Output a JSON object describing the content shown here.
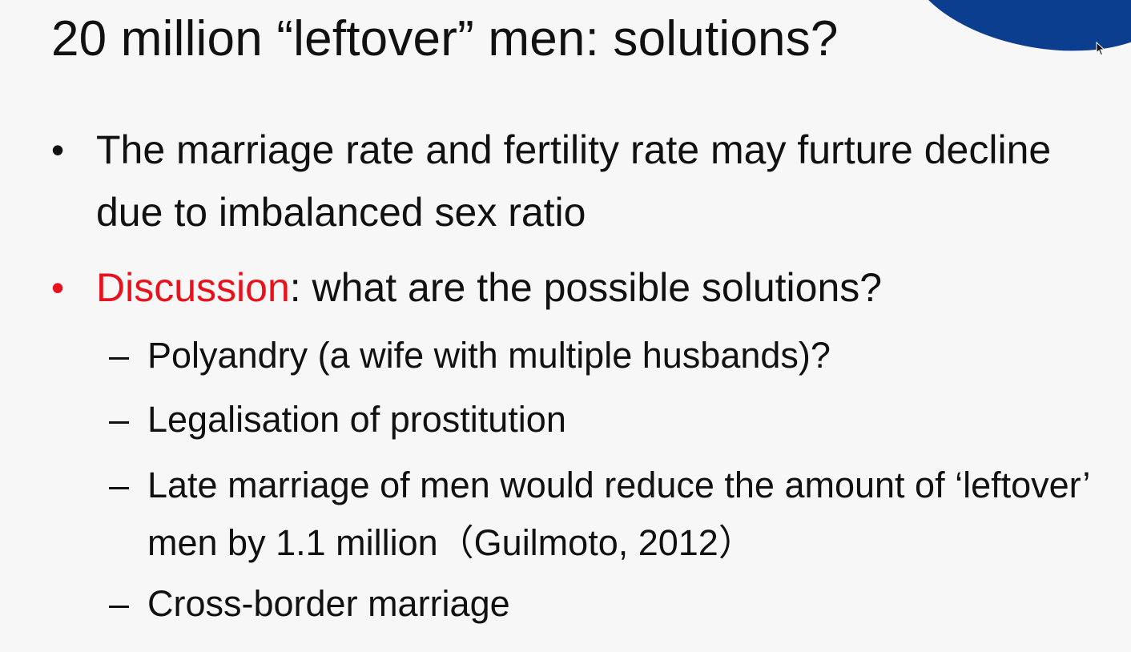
{
  "slide": {
    "title": "20 million “leftover” men: solutions?",
    "bullets": [
      {
        "marker": "•",
        "text": "The marriage rate and fertility rate may furture decline due to imbalanced sex ratio"
      },
      {
        "marker": "•",
        "highlight": "Discussion",
        "text": ": what are the possible solutions?",
        "sub_items": [
          {
            "marker": "–",
            "text": "Polyandry (a wife with multiple husbands)?"
          },
          {
            "marker": "–",
            "text": "Legalisation of prostitution"
          },
          {
            "marker": "–",
            "text": "Late marriage of men would reduce the amount of ‘leftover’ men by 1.1 million（Guilmoto, 2012）"
          },
          {
            "marker": "–",
            "text": "Cross-border marriage"
          }
        ]
      }
    ]
  },
  "colors": {
    "text": "#111111",
    "highlight": "#e8111c",
    "accent": "#0b3e8f",
    "background": "#f7f7f7"
  },
  "icons": {
    "cursor": "mouse-pointer-icon"
  }
}
